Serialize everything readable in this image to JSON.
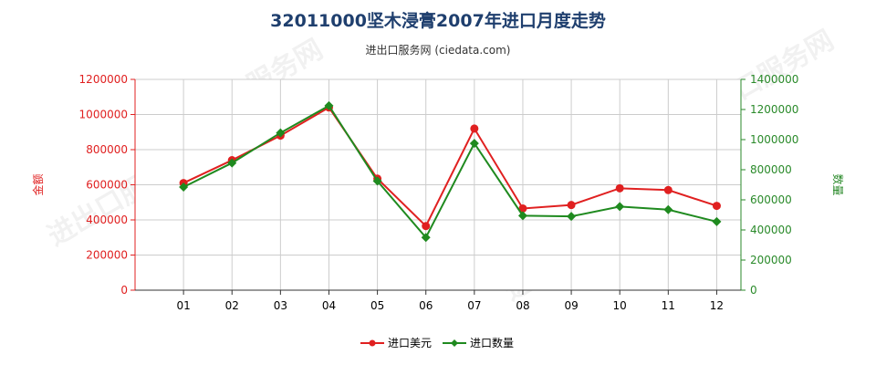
{
  "chart_data": {
    "type": "line",
    "title": "32011000坚木浸膏2007年进口月度走势",
    "subtitle": "进出口服务网 (ciedata.com)",
    "categories": [
      "01",
      "02",
      "03",
      "04",
      "05",
      "06",
      "07",
      "08",
      "09",
      "10",
      "11",
      "12"
    ],
    "y_left": {
      "label": "金额",
      "ylim": [
        0,
        1200000
      ],
      "ticks": [
        0,
        200000,
        400000,
        600000,
        800000,
        1000000,
        1200000
      ],
      "color": "#e02020"
    },
    "y_right": {
      "label": "数量",
      "ylim": [
        0,
        1400000
      ],
      "ticks": [
        0,
        200000,
        400000,
        600000,
        800000,
        1000000,
        1200000,
        1400000
      ],
      "color": "#2a8a2a"
    },
    "series": [
      {
        "name": "进口美元",
        "axis": "left",
        "color": "#e02020",
        "values": [
          610000,
          740000,
          880000,
          1040000,
          635000,
          365000,
          920000,
          465000,
          485000,
          580000,
          570000,
          480000
        ]
      },
      {
        "name": "进口数量",
        "axis": "right",
        "color": "#1f8a1f",
        "values": [
          685000,
          845000,
          1045000,
          1225000,
          725000,
          350000,
          975000,
          495000,
          490000,
          555000,
          535000,
          455000
        ]
      }
    ],
    "grid": true,
    "legend": "bottom-center",
    "watermark": "进出口服务网"
  }
}
